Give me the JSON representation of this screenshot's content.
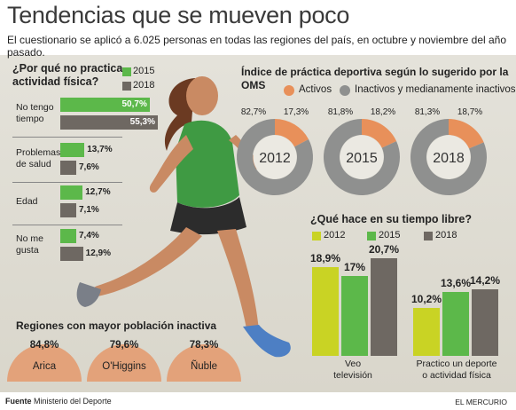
{
  "headline": "Tendencias que se mueven poco",
  "subtitle": "El cuestionario se aplicó a 6.025 personas en todas las regiones del país, en octubre y noviembre del año pasado.",
  "colors": {
    "green": "#5cb84a",
    "dark": "#6e6862",
    "orange": "#e8905a",
    "gray": "#8f908f",
    "lime": "#c9d324",
    "bg": "#dedbd1"
  },
  "left_chart": {
    "title_line1": "¿Por qué no practica",
    "title_line2": "actividad física?",
    "legend": [
      "2015",
      "2018"
    ],
    "items": [
      {
        "label_line1": "No tengo",
        "label_line2": "tiempo",
        "v2015": "50,7%",
        "v2018": "55,3%"
      },
      {
        "label_line1": "Problemas",
        "label_line2": "de salud",
        "v2015": "13,7%",
        "v2018": "7,6%"
      },
      {
        "label_line1": "Edad",
        "label_line2": "",
        "v2015": "12,7%",
        "v2018": "7,1%"
      },
      {
        "label_line1": "No me",
        "label_line2": "gusta",
        "v2015": "7,4%",
        "v2018": "12,9%"
      }
    ]
  },
  "donut_chart": {
    "title": "Índice de práctica deportiva según lo sugerido por la OMS",
    "legend": [
      "Activos",
      "Inactivos y medianamente inactivos"
    ],
    "years": [
      {
        "year": "2012",
        "inactive_label": "82,7%",
        "active_label": "17,3%"
      },
      {
        "year": "2015",
        "inactive_label": "81,8%",
        "active_label": "18,2%"
      },
      {
        "year": "2018",
        "inactive_label": "81,3%",
        "active_label": "18,7%"
      }
    ]
  },
  "free_time_chart": {
    "title": "¿Qué hace en su tiempo libre?",
    "legend": [
      "2012",
      "2015",
      "2018"
    ],
    "groups": [
      {
        "label_line1": "Veo",
        "label_line2": "televisión",
        "labels": [
          "18,9%",
          "17%",
          "20,7%"
        ]
      },
      {
        "label_line1": "Practico un deporte",
        "label_line2": "o actividad física",
        "labels": [
          "10,2%",
          "13,6%",
          "14,2%"
        ]
      }
    ]
  },
  "regions": {
    "title": "Regiones con mayor población inactiva",
    "items": [
      {
        "pct": "84,8%",
        "name": "Arica"
      },
      {
        "pct": "79,6%",
        "name": "O'Higgins"
      },
      {
        "pct": "78,3%",
        "name": "Ñuble"
      }
    ]
  },
  "footer": {
    "label": "Fuente",
    "source": "Ministerio del Deporte",
    "credit": "EL MERCURIO"
  },
  "chart_data": [
    {
      "type": "bar",
      "title": "¿Por qué no practica actividad física?",
      "categories": [
        "No tengo tiempo",
        "Problemas de salud",
        "Edad",
        "No me gusta"
      ],
      "series": [
        {
          "name": "2015",
          "values": [
            50.7,
            13.7,
            12.7,
            7.4
          ]
        },
        {
          "name": "2018",
          "values": [
            55.3,
            7.6,
            7.1,
            12.9
          ]
        }
      ],
      "legend": "top-right"
    },
    {
      "type": "pie",
      "title": "Índice de práctica deportiva según lo sugerido por la OMS",
      "categories": [
        "2012",
        "2015",
        "2018"
      ],
      "series": [
        {
          "name": "Activos",
          "values": [
            17.3,
            18.2,
            18.7
          ]
        },
        {
          "name": "Inactivos y medianamente inactivos",
          "values": [
            82.7,
            81.8,
            81.3
          ]
        }
      ],
      "legend": "top"
    },
    {
      "type": "bar",
      "title": "¿Qué hace en su tiempo libre?",
      "categories": [
        "Veo televisión",
        "Practico un deporte o actividad física"
      ],
      "series": [
        {
          "name": "2012",
          "values": [
            18.9,
            10.2
          ]
        },
        {
          "name": "2015",
          "values": [
            17,
            13.6
          ]
        },
        {
          "name": "2018",
          "values": [
            20.7,
            14.2
          ]
        }
      ],
      "legend": "top"
    },
    {
      "type": "bar",
      "title": "Regiones con mayor población inactiva",
      "categories": [
        "Arica",
        "O'Higgins",
        "Ñuble"
      ],
      "values": [
        84.8,
        79.6,
        78.3
      ]
    }
  ]
}
